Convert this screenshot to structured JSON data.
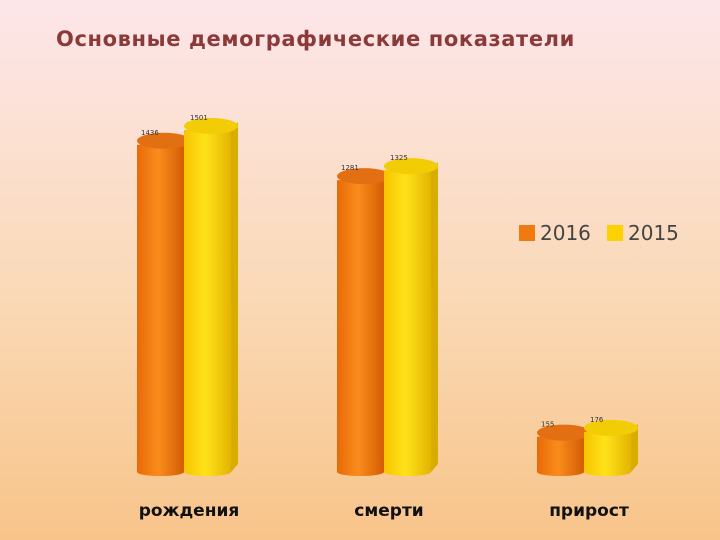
{
  "title": "Основные демографические показатели",
  "colors": {
    "2016": "#f07a10",
    "2015": "#fcd203"
  },
  "chart_data": {
    "type": "bar",
    "title": "Основные демографические показатели",
    "categories": [
      "рождения",
      "смерти",
      "прирост"
    ],
    "series": [
      {
        "name": "2016",
        "values": [
          1436,
          1281,
          155
        ]
      },
      {
        "name": "2015",
        "values": [
          1501,
          1325,
          176
        ]
      }
    ],
    "ylim": [
      0,
      1501
    ],
    "xlabel": "",
    "ylabel": "",
    "grid": false,
    "legend": "right"
  }
}
